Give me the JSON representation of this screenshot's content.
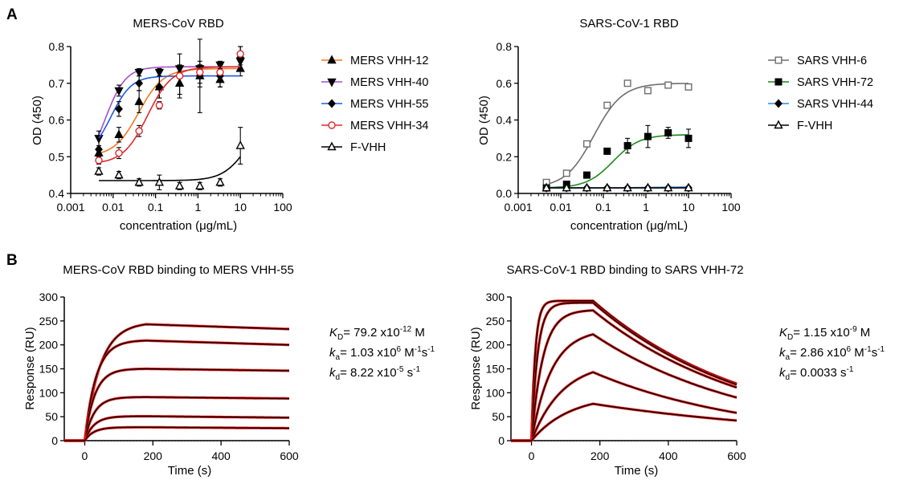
{
  "panels": {
    "a": "A",
    "b": "B"
  },
  "chart_data": [
    {
      "type": "scatter",
      "title": "MERS-CoV RBD",
      "xlabel": "concentration (μg/mL)",
      "ylabel": "OD (450)",
      "xscale": "log",
      "xlim": [
        0.001,
        100
      ],
      "ylim": [
        0.4,
        0.8
      ],
      "xticks": [
        "0.001",
        "0.01",
        "0.1",
        "1",
        "10",
        "100"
      ],
      "yticks": [
        "0.4",
        "0.5",
        "0.6",
        "0.7",
        "0.8"
      ],
      "legend_position": "right",
      "x": [
        0.0046,
        0.0137,
        0.041,
        0.123,
        0.37,
        1.11,
        3.33,
        10
      ],
      "series": [
        {
          "name": "MERS VHH-12",
          "color": "#f07820",
          "marker": "triangle-up-filled",
          "values": [
            0.51,
            0.56,
            0.65,
            0.69,
            0.7,
            0.72,
            0.71,
            0.74
          ],
          "err": [
            0.02,
            0.02,
            0.03,
            0.03,
            0.03,
            0.03,
            0.02,
            0.02
          ],
          "fit": {
            "bottom": 0.5,
            "top": 0.74,
            "ec50": 0.04,
            "hill": 1.5
          }
        },
        {
          "name": "MERS VHH-40",
          "color": "#a64ec8",
          "marker": "triangle-down-filled",
          "values": [
            0.55,
            0.68,
            0.73,
            0.73,
            0.74,
            0.74,
            0.75,
            0.76
          ],
          "err": [
            0.02,
            0.015,
            0.01,
            0.01,
            0.01,
            0.01,
            0.01,
            0.01
          ],
          "fit": {
            "bottom": 0.46,
            "top": 0.745,
            "ec50": 0.0065,
            "hill": 1.8
          }
        },
        {
          "name": "MERS VHH-55",
          "color": "#1a5ae6",
          "marker": "diamond-filled",
          "values": [
            0.52,
            0.63,
            0.7,
            0.69,
            0.72,
            0.72,
            0.72,
            0.77
          ],
          "err": [
            0.03,
            0.02,
            0.02,
            0.03,
            0.06,
            0.1,
            0.03,
            0.03
          ],
          "fit": {
            "bottom": 0.5,
            "top": 0.72,
            "ec50": 0.009,
            "hill": 1.8
          }
        },
        {
          "name": "MERS VHH-34",
          "color": "#e02828",
          "marker": "circle-open",
          "values": [
            0.49,
            0.51,
            0.57,
            0.64,
            0.72,
            0.73,
            0.73,
            0.78
          ],
          "err": [
            0.01,
            0.015,
            0.015,
            0.01,
            0.02,
            0.03,
            0.02,
            0.02
          ],
          "fit": {
            "bottom": 0.48,
            "top": 0.745,
            "ec50": 0.065,
            "hill": 1.5
          }
        },
        {
          "name": "F-VHH",
          "color": "#000000",
          "marker": "triangle-up-open",
          "values": [
            0.46,
            0.45,
            0.43,
            0.43,
            0.42,
            0.42,
            0.43,
            0.53
          ],
          "err": [
            0.01,
            0.01,
            0.01,
            0.02,
            0.01,
            0.01,
            0.01,
            0.05
          ],
          "fit": {
            "bottom": 0.435,
            "top": 0.62,
            "ec50": 15,
            "hill": 1.5
          }
        }
      ]
    },
    {
      "type": "scatter",
      "title": "SARS-CoV-1 RBD",
      "xlabel": "concentration (μg/mL)",
      "ylabel": "OD (450)",
      "xscale": "log",
      "xlim": [
        0.001,
        100
      ],
      "ylim": [
        0,
        0.8
      ],
      "xticks": [
        "0.001",
        "0.01",
        "0.1",
        "1",
        "10",
        "100"
      ],
      "yticks": [
        "0.0",
        "0.2",
        "0.4",
        "0.6",
        "0.8"
      ],
      "legend_position": "right",
      "x": [
        0.0046,
        0.0137,
        0.041,
        0.123,
        0.37,
        1.11,
        3.33,
        10
      ],
      "series": [
        {
          "name": "SARS VHH-6",
          "color": "#6e6e6e",
          "marker": "square-open",
          "values": [
            0.06,
            0.11,
            0.27,
            0.48,
            0.6,
            0.56,
            0.59,
            0.58
          ],
          "err": [
            0,
            0,
            0,
            0,
            0,
            0,
            0,
            0
          ],
          "fit": {
            "bottom": 0.03,
            "top": 0.6,
            "ec50": 0.06,
            "hill": 1.3
          }
        },
        {
          "name": "SARS VHH-72",
          "color": "#1a8a1a",
          "marker": "square-filled",
          "values": [
            0.03,
            0.05,
            0.1,
            0.23,
            0.26,
            0.31,
            0.33,
            0.3
          ],
          "err": [
            0,
            0,
            0,
            0.01,
            0.04,
            0.06,
            0.03,
            0.05
          ],
          "fit": {
            "bottom": 0.03,
            "top": 0.32,
            "ec50": 0.17,
            "hill": 1.4
          }
        },
        {
          "name": "SARS VHH-44",
          "color": "#2a8ae6",
          "marker": "diamond-filled",
          "values": [
            0.03,
            0.03,
            0.03,
            0.03,
            0.03,
            0.03,
            0.03,
            0.03
          ],
          "err": [
            0,
            0,
            0,
            0,
            0,
            0,
            0,
            0
          ],
          "fit": {
            "bottom": 0.03,
            "top": 0.035,
            "ec50": 1,
            "hill": 1
          }
        },
        {
          "name": "F-VHH",
          "color": "#000000",
          "marker": "triangle-up-open",
          "values": [
            0.03,
            0.03,
            0.03,
            0.03,
            0.03,
            0.03,
            0.03,
            0.03
          ],
          "err": [
            0,
            0,
            0,
            0,
            0,
            0,
            0,
            0
          ],
          "fit": {
            "bottom": 0.03,
            "top": 0.03,
            "ec50": 1,
            "hill": 1
          }
        }
      ]
    },
    {
      "type": "line",
      "title": "MERS-CoV RBD binding to MERS VHH-55",
      "xlabel": "Time (s)",
      "ylabel": "Response (RU)",
      "xlim": [
        -60,
        600
      ],
      "ylim": [
        0,
        300
      ],
      "xticks": [
        "0",
        "200",
        "400",
        "600"
      ],
      "yticks": [
        "0",
        "50",
        "100",
        "150",
        "200",
        "250",
        "300"
      ],
      "association_end": 180,
      "baseline": "dotted at 0",
      "colors": {
        "data": "#e01818",
        "fit": "#000000"
      },
      "traces": [
        {
          "plateau": 243,
          "end": 233,
          "kobs": 0.022
        },
        {
          "plateau": 209,
          "end": 200,
          "kobs": 0.03
        },
        {
          "plateau": 150,
          "end": 146,
          "kobs": 0.034
        },
        {
          "plateau": 91,
          "end": 88,
          "kobs": 0.036
        },
        {
          "plateau": 51,
          "end": 48,
          "kobs": 0.037
        },
        {
          "plateau": 28,
          "end": 26,
          "kobs": 0.038
        }
      ],
      "kinetics": {
        "kd_label": "K",
        "kd_sub": "D",
        "kd_value": "= 79.2 x10",
        "kd_exp": "-12",
        "kd_unit": " M",
        "ka_label": "k",
        "ka_sub": "a",
        "ka_value": "= 1.03 x10",
        "ka_exp": "6",
        "ka_unit1": " M",
        "ka_unit_exp1": "-1",
        "ka_unit2": "s",
        "ka_unit_exp2": "-1",
        "koff_label": "k",
        "koff_sub": "d",
        "koff_value": "= 8.22 x10",
        "koff_exp": "-5",
        "koff_unit": " s",
        "koff_unit_exp": "-1"
      }
    },
    {
      "type": "line",
      "title": "SARS-CoV-1 RBD binding to SARS VHH-72",
      "xlabel": "Time (s)",
      "ylabel": "Response (RU)",
      "xlim": [
        -60,
        600
      ],
      "ylim": [
        0,
        300
      ],
      "xticks": [
        "0",
        "200",
        "400",
        "600"
      ],
      "yticks": [
        "0",
        "50",
        "100",
        "150",
        "200",
        "250",
        "300"
      ],
      "association_end": 180,
      "baseline": "dotted at 0",
      "colors": {
        "data": "#e01818",
        "fit": "#000000"
      },
      "traces": [
        {
          "plateau": 292,
          "end": 119,
          "kobs": 0.09
        },
        {
          "plateau": 288,
          "end": 117,
          "kobs": 0.055
        },
        {
          "plateau": 272,
          "end": 111,
          "kobs": 0.03
        },
        {
          "plateau": 222,
          "end": 90,
          "kobs": 0.017
        },
        {
          "plateau": 143,
          "end": 58,
          "kobs": 0.011
        },
        {
          "plateau": 77,
          "end": 42,
          "kobs": 0.009
        }
      ],
      "kinetics": {
        "kd_label": "K",
        "kd_sub": "D",
        "kd_value": "= 1.15 x10",
        "kd_exp": "-9",
        "kd_unit": " M",
        "ka_label": "k",
        "ka_sub": "a",
        "ka_value": "= 2.86 x10",
        "ka_exp": "6",
        "ka_unit1": " M",
        "ka_unit_exp1": "-1",
        "ka_unit2": "s",
        "ka_unit_exp2": "-1",
        "koff_label": "k",
        "koff_sub": "d",
        "koff_value": "= 0.0033 s",
        "koff_exp": "",
        "koff_unit": "",
        "koff_unit_exp": "-1"
      }
    }
  ]
}
